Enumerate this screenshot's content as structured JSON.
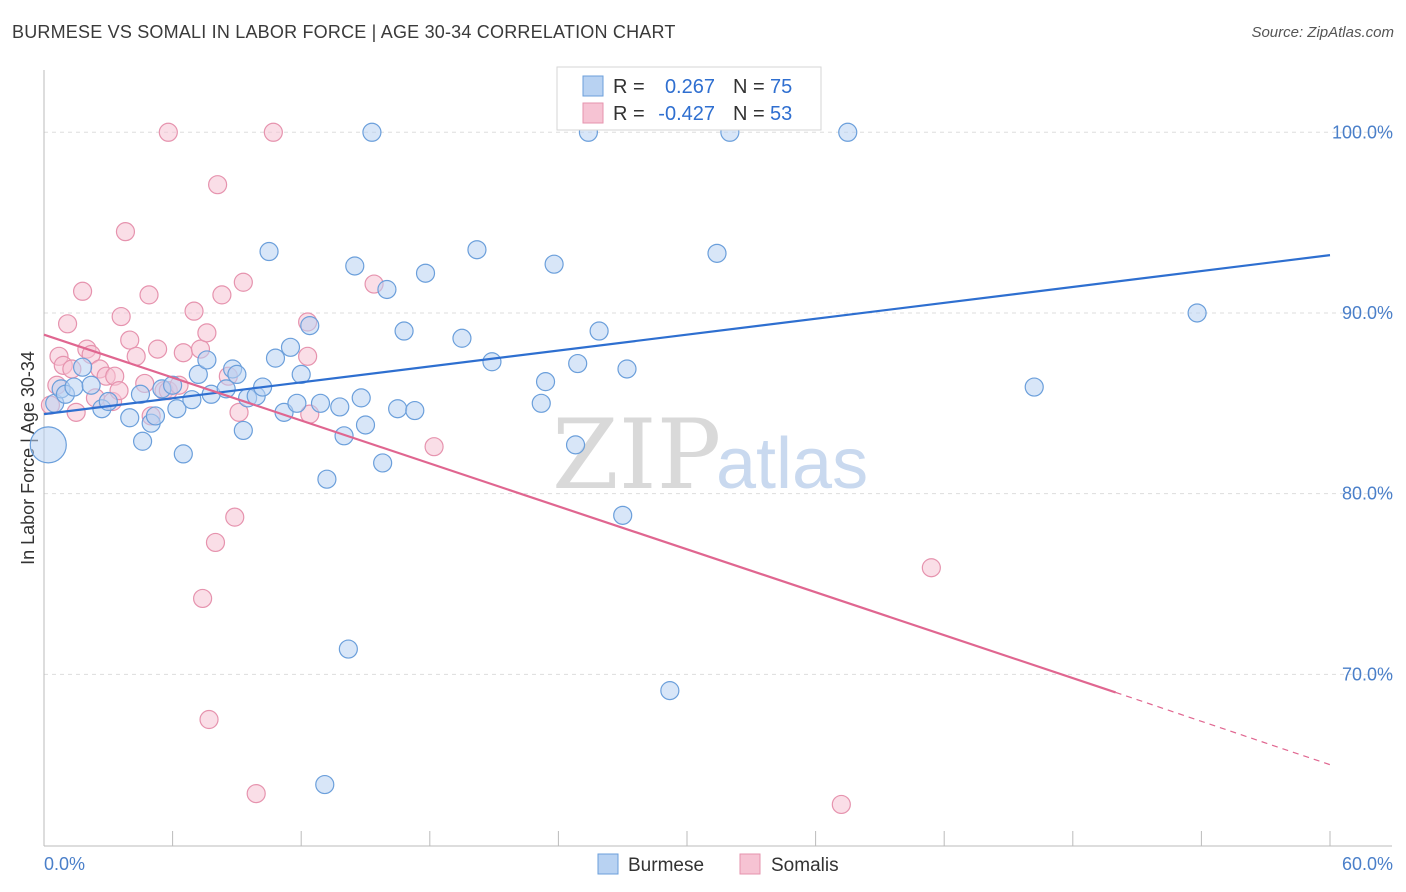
{
  "header": {
    "title": "BURMESE VS SOMALI IN LABOR FORCE | AGE 30-34 CORRELATION CHART",
    "source": "Source: ZipAtlas.com"
  },
  "watermark": {
    "zip": "ZIP",
    "atlas": "atlas"
  },
  "stats": {
    "r_label": "R =",
    "n_label": "N =",
    "burmese": {
      "r": "0.267",
      "n": "75"
    },
    "somalis": {
      "r": "-0.427",
      "n": "53"
    }
  },
  "legend": {
    "burmese": "Burmese",
    "somalis": "Somalis"
  },
  "colors": {
    "burmese_fill": "#b8d2f2",
    "burmese_stroke": "#6b9fdb",
    "burmese_line": "#2e6fd0",
    "somalis_fill": "#f6c3d3",
    "somalis_stroke": "#e693ae",
    "somalis_line": "#e06690",
    "grid": "#dddddd",
    "tick_text": "#4a7fc9"
  },
  "chart_data": {
    "type": "scatter",
    "title": "BURMESE VS SOMALI IN LABOR FORCE | AGE 30-34 CORRELATION CHART",
    "xlabel": "",
    "ylabel": "In Labor Force | Age 30-34",
    "xlim": [
      0,
      60
    ],
    "ylim": [
      60.5,
      104
    ],
    "x_tick_labels": [
      "0.0%",
      "60.0%"
    ],
    "y_ticks": [
      70,
      80,
      90,
      100
    ],
    "y_tick_labels": [
      "70.0%",
      "80.0%",
      "90.0%",
      "100.0%"
    ],
    "grid": true,
    "legend_position": "bottom-center",
    "series": [
      {
        "name": "Burmese",
        "r": 0.267,
        "n": 75,
        "trend": {
          "x0": 0,
          "y0": 84.4,
          "x1": 60,
          "y1": 93.2
        },
        "points": [
          [
            0.2,
            82.7
          ],
          [
            0.5,
            85.0
          ],
          [
            0.8,
            85.8
          ],
          [
            1.0,
            85.5
          ],
          [
            1.4,
            85.9
          ],
          [
            1.8,
            87.0
          ],
          [
            2.2,
            86.0
          ],
          [
            2.7,
            84.7
          ],
          [
            3.0,
            85.1
          ],
          [
            4.0,
            84.2
          ],
          [
            4.5,
            85.5
          ],
          [
            4.6,
            82.9
          ],
          [
            5.0,
            83.9
          ],
          [
            5.2,
            84.3
          ],
          [
            5.5,
            85.8
          ],
          [
            6.0,
            86.0
          ],
          [
            6.2,
            84.7
          ],
          [
            6.5,
            82.2
          ],
          [
            6.9,
            85.2
          ],
          [
            7.2,
            86.6
          ],
          [
            7.6,
            87.4
          ],
          [
            7.8,
            85.5
          ],
          [
            8.5,
            85.8
          ],
          [
            8.8,
            86.9
          ],
          [
            9.0,
            86.6
          ],
          [
            9.3,
            83.5
          ],
          [
            9.5,
            85.3
          ],
          [
            9.9,
            85.4
          ],
          [
            10.2,
            85.9
          ],
          [
            10.5,
            93.4
          ],
          [
            10.8,
            87.5
          ],
          [
            11.2,
            84.5
          ],
          [
            11.5,
            88.1
          ],
          [
            11.8,
            85.0
          ],
          [
            12.0,
            86.6
          ],
          [
            12.4,
            89.3
          ],
          [
            12.9,
            85.0
          ],
          [
            13.1,
            63.9
          ],
          [
            13.2,
            80.8
          ],
          [
            13.8,
            84.8
          ],
          [
            14.0,
            83.2
          ],
          [
            14.2,
            71.4
          ],
          [
            14.5,
            92.6
          ],
          [
            14.8,
            85.3
          ],
          [
            15.0,
            83.8
          ],
          [
            15.3,
            100.0
          ],
          [
            15.8,
            81.7
          ],
          [
            16.0,
            91.3
          ],
          [
            16.5,
            84.7
          ],
          [
            16.8,
            89.0
          ],
          [
            17.3,
            84.6
          ],
          [
            17.8,
            92.2
          ],
          [
            19.5,
            88.6
          ],
          [
            20.2,
            93.5
          ],
          [
            20.9,
            87.3
          ],
          [
            23.2,
            85.0
          ],
          [
            23.4,
            86.2
          ],
          [
            23.8,
            92.7
          ],
          [
            24.8,
            82.7
          ],
          [
            24.9,
            87.2
          ],
          [
            25.4,
            100.0
          ],
          [
            25.9,
            89.0
          ],
          [
            27.0,
            78.8
          ],
          [
            27.2,
            86.9
          ],
          [
            29.2,
            69.1
          ],
          [
            31.4,
            93.3
          ],
          [
            32.0,
            100.0
          ],
          [
            37.5,
            100.0
          ],
          [
            46.2,
            85.9
          ],
          [
            53.8,
            90.0
          ]
        ]
      },
      {
        "name": "Somalis",
        "r": -0.427,
        "n": 53,
        "trend": {
          "x0": 0,
          "y0": 88.8,
          "x1": 50,
          "y1": 69.0,
          "dash_to_x": 60,
          "dash_to_y": 65.0
        },
        "points": [
          [
            0.3,
            84.9
          ],
          [
            0.6,
            86.0
          ],
          [
            0.7,
            87.6
          ],
          [
            0.9,
            87.1
          ],
          [
            1.1,
            89.4
          ],
          [
            1.3,
            86.9
          ],
          [
            1.5,
            84.5
          ],
          [
            1.8,
            91.2
          ],
          [
            2.0,
            88.0
          ],
          [
            2.2,
            87.7
          ],
          [
            2.4,
            85.3
          ],
          [
            2.6,
            86.9
          ],
          [
            2.9,
            86.5
          ],
          [
            3.2,
            85.1
          ],
          [
            3.3,
            86.5
          ],
          [
            3.5,
            85.7
          ],
          [
            3.6,
            89.8
          ],
          [
            3.8,
            94.5
          ],
          [
            4.0,
            88.5
          ],
          [
            4.3,
            87.6
          ],
          [
            4.7,
            86.1
          ],
          [
            4.9,
            91.0
          ],
          [
            5.0,
            84.3
          ],
          [
            5.3,
            88.0
          ],
          [
            5.6,
            85.7
          ],
          [
            5.8,
            85.7
          ],
          [
            5.8,
            100.0
          ],
          [
            6.3,
            86.0
          ],
          [
            6.5,
            87.8
          ],
          [
            7.0,
            90.1
          ],
          [
            7.3,
            88.0
          ],
          [
            7.4,
            74.2
          ],
          [
            7.6,
            88.9
          ],
          [
            7.7,
            67.5
          ],
          [
            8.0,
            77.3
          ],
          [
            8.1,
            97.1
          ],
          [
            8.3,
            91.0
          ],
          [
            8.6,
            86.5
          ],
          [
            8.9,
            78.7
          ],
          [
            9.1,
            84.5
          ],
          [
            9.3,
            91.7
          ],
          [
            9.9,
            63.4
          ],
          [
            10.7,
            100.0
          ],
          [
            12.3,
            87.6
          ],
          [
            12.3,
            89.5
          ],
          [
            12.4,
            84.4
          ],
          [
            15.4,
            91.6
          ],
          [
            18.2,
            82.6
          ],
          [
            37.2,
            62.8
          ],
          [
            41.4,
            75.9
          ]
        ]
      }
    ]
  }
}
